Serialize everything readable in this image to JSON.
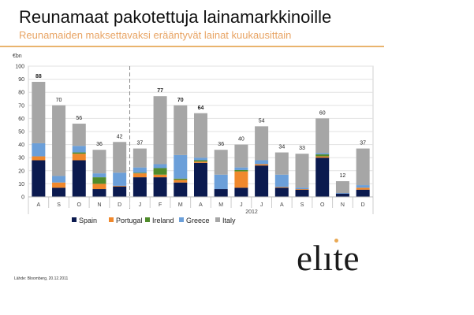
{
  "slide": {
    "title": "Reunamaat pakotettuja lainamarkkinoille",
    "subtitle": "Reunamaiden maksettavaksi erääntyvät lainat kuukausittain",
    "source": "Lähde: Bloomberg, 20.12.2011",
    "logo_text": "elite"
  },
  "chart_data": {
    "type": "bar",
    "stacked": true,
    "ylabel": "€bn",
    "ylim": [
      0,
      100
    ],
    "yticks": [
      0,
      10,
      20,
      30,
      40,
      50,
      60,
      70,
      80,
      90,
      100
    ],
    "grid": true,
    "legend_position": "bottom",
    "year_label": "2012",
    "categories": [
      "A",
      "S",
      "O",
      "N",
      "D",
      "J",
      "F",
      "M",
      "A",
      "M",
      "J",
      "J",
      "A",
      "S",
      "O",
      "N",
      "D"
    ],
    "totals": [
      88,
      70,
      56,
      36,
      42,
      37,
      77,
      70,
      64,
      36,
      40,
      54,
      34,
      33,
      60,
      12,
      37
    ],
    "bold_totals": [
      true,
      false,
      false,
      false,
      false,
      false,
      true,
      true,
      true,
      false,
      false,
      false,
      false,
      false,
      false,
      false,
      false
    ],
    "series": [
      {
        "name": "Spain",
        "color": "#0b1a4f",
        "values": [
          28,
          7,
          28,
          6,
          8,
          15,
          15,
          11,
          26,
          6,
          7,
          24,
          7,
          5.5,
          30,
          2.5,
          5.5
        ]
      },
      {
        "name": "Portugal",
        "color": "#f0882c",
        "values": [
          3,
          4,
          5,
          4,
          0.5,
          3,
          2,
          2,
          1,
          0,
          12.5,
          1,
          0.5,
          0.5,
          1,
          0,
          1.5
        ]
      },
      {
        "name": "Ireland",
        "color": "#4f8b2b",
        "values": [
          0,
          0,
          1,
          5,
          0,
          0.5,
          5,
          1,
          1,
          0,
          1,
          0,
          0,
          0,
          1.5,
          0,
          0
        ]
      },
      {
        "name": "Greece",
        "color": "#6b9fd9",
        "values": [
          10,
          5,
          5,
          3,
          10,
          4,
          3,
          18,
          2,
          11,
          2,
          3,
          9.5,
          1,
          1,
          0.5,
          2
        ]
      },
      {
        "name": "Italy",
        "color": "#a6a6a6",
        "values": [
          47,
          54,
          17,
          18,
          23.5,
          14.5,
          52,
          38,
          34,
          19,
          17.5,
          26,
          17,
          26,
          26.5,
          9,
          28
        ]
      }
    ]
  }
}
